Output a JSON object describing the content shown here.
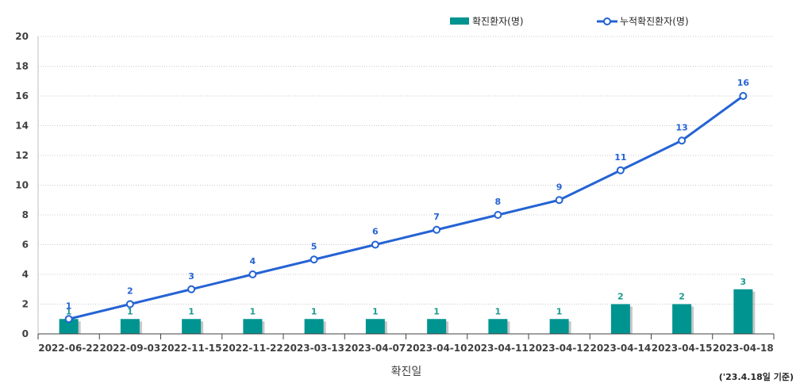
{
  "chart_data": {
    "type": "bar+line",
    "categories": [
      "2022-06-22",
      "2022-09-03",
      "2022-11-15",
      "2022-11-22",
      "2023-03-13",
      "2023-04-07",
      "2023-04-10",
      "2023-04-11",
      "2023-04-12",
      "2023-04-14",
      "2023-04-15",
      "2023-04-18"
    ],
    "series": [
      {
        "name": "확진환자(명)",
        "kind": "bar",
        "values": [
          1,
          1,
          1,
          1,
          1,
          1,
          1,
          1,
          1,
          2,
          2,
          3
        ],
        "color": "#009490"
      },
      {
        "name": "누적확진환자(명)",
        "kind": "line",
        "values": [
          1,
          2,
          3,
          4,
          5,
          6,
          7,
          8,
          9,
          11,
          13,
          16
        ],
        "color": "#2563d4"
      }
    ],
    "xlabel": "확진일",
    "ylim": [
      0,
      20
    ],
    "yticks": [
      0,
      2,
      4,
      6,
      8,
      10,
      12,
      14,
      16,
      18,
      20
    ],
    "grid": true,
    "legend_position": "top-right",
    "note": "('23.4.18일 기준)"
  }
}
